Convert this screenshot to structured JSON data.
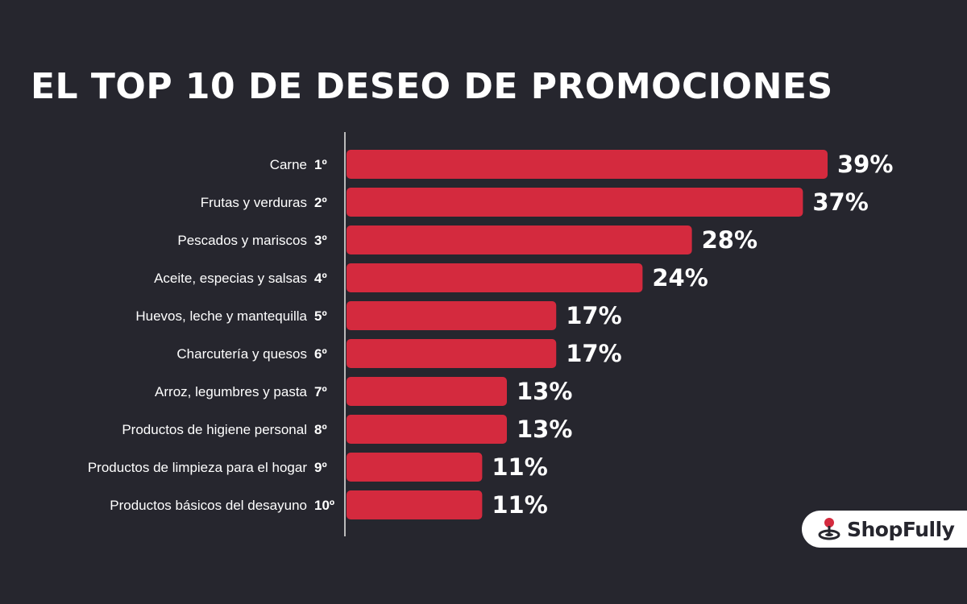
{
  "title": "EL TOP 10 DE DESEO DE PROMOCIONES",
  "brand": {
    "name": "ShopFully"
  },
  "colors": {
    "background": "#26262e",
    "bar": "#d42a3e",
    "text": "#ffffff",
    "axis": "#bbbbbb"
  },
  "chart_data": {
    "type": "bar",
    "orientation": "horizontal",
    "title": "EL TOP 10 DE DESEO DE PROMOCIONES",
    "categories": [
      "Carne",
      "Frutas y verduras",
      "Pescados y mariscos",
      "Aceite, especias y salsas",
      "Huevos, leche y mantequilla",
      "Charcutería y quesos",
      "Arroz, legumbres y pasta",
      "Productos de higiene personal",
      "Productos de limpieza para el hogar",
      "Productos básicos del desayuno"
    ],
    "ranks": [
      "1º",
      "2º",
      "3º",
      "4º",
      "5º",
      "6º",
      "7º",
      "8º",
      "9º",
      "10º"
    ],
    "values": [
      39,
      37,
      28,
      24,
      17,
      17,
      13,
      13,
      11,
      11
    ],
    "value_labels": [
      "39%",
      "37%",
      "28%",
      "24%",
      "17%",
      "17%",
      "13%",
      "13%",
      "11%",
      "11%"
    ],
    "unit": "%",
    "xlim": [
      0,
      39
    ],
    "grid": false,
    "legend": "none"
  }
}
